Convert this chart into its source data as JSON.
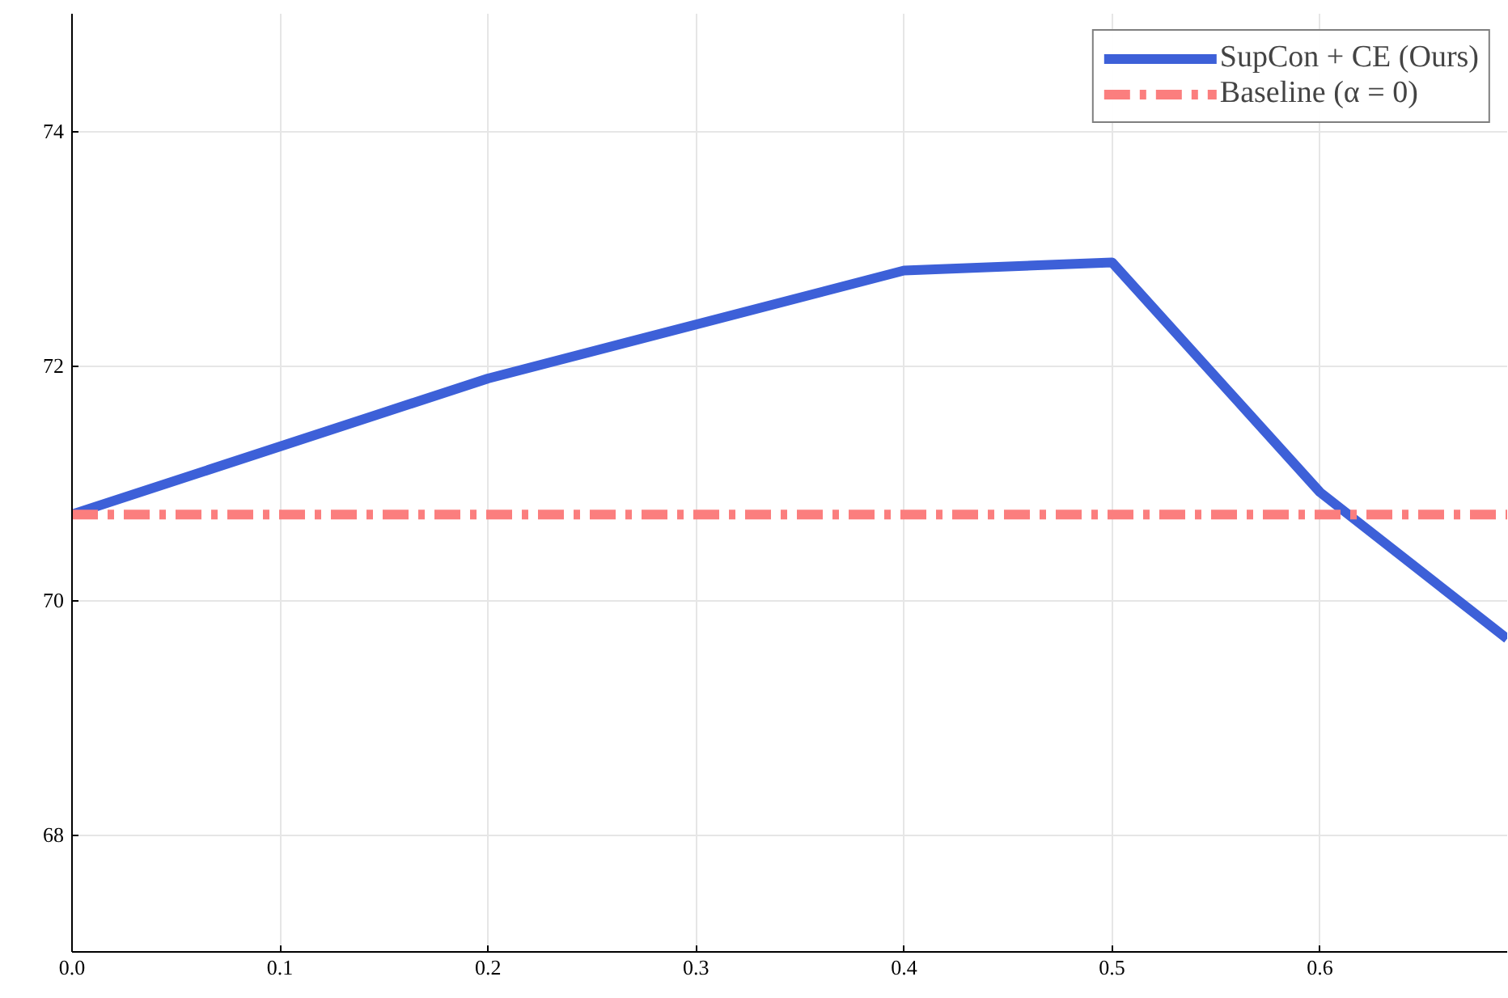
{
  "chart_data": {
    "type": "line",
    "x": [
      0,
      0.2,
      0.4,
      0.5,
      0.6,
      0.69
    ],
    "series": [
      {
        "name": "SupCon + CE (Ours)",
        "color": "#3d60d8",
        "values": [
          70.73,
          71.89,
          72.81,
          72.88,
          70.92,
          69.67
        ],
        "line_style": "solid"
      },
      {
        "name": "Baseline (α = 0)",
        "color": "#fb7e7e",
        "x": [
          0,
          0.69
        ],
        "values": [
          70.73,
          70.73
        ],
        "line_style": "dashed"
      }
    ],
    "xlim": [
      0,
      0.69
    ],
    "ylim": [
      67,
      75
    ],
    "xticks": [
      {
        "value": 0,
        "label": "0.0"
      },
      0.1,
      0.2,
      0.3,
      0.4,
      0.5,
      0.6
    ],
    "yticks": [
      68,
      70,
      72,
      74
    ],
    "grid": true,
    "legend": "top right",
    "marker": "none"
  }
}
